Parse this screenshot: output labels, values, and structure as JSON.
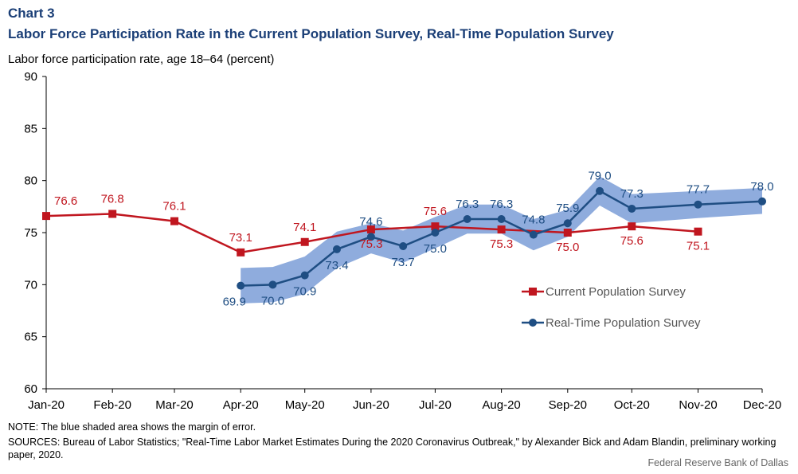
{
  "header": {
    "label": "Chart 3",
    "title": "Labor Force Participation Rate in the Current Population Survey, Real-Time Population Survey"
  },
  "notes": {
    "note": "NOTE: The blue shaded area shows the margin of error.",
    "sources": "SOURCES: Bureau of Labor Statistics; \"Real-Time Labor Market Estimates During the 2020 Coronavirus Outbreak,\" by Alexander Bick and Adam Blandin, preliminary working paper, 2020.",
    "credit": "Federal Reserve Bank of Dallas"
  },
  "chart_data": {
    "type": "line",
    "ylabel": "Labor force participation rate, age 18–64 (percent)",
    "ylim": [
      60,
      90
    ],
    "yticks": [
      60,
      65,
      70,
      75,
      80,
      85,
      90
    ],
    "xlim": [
      "2020-01-01",
      "2020-12-01"
    ],
    "xtick_dates": [
      "2020-01-01",
      "2020-02-01",
      "2020-03-01",
      "2020-04-01",
      "2020-05-01",
      "2020-06-01",
      "2020-07-01",
      "2020-08-01",
      "2020-09-01",
      "2020-10-01",
      "2020-11-01",
      "2020-12-01"
    ],
    "xtick_labels": [
      "Jan-20",
      "Feb-20",
      "Mar-20",
      "Apr-20",
      "May-20",
      "Jun-20",
      "Jul-20",
      "Aug-20",
      "Sep-20",
      "Oct-20",
      "Nov-20",
      "Dec-20"
    ],
    "grid": false,
    "legend": "right",
    "series": [
      {
        "name": "Current Population Survey",
        "color": "#c0161f",
        "marker": "square",
        "x": [
          "2020-01-01",
          "2020-02-01",
          "2020-03-01",
          "2020-04-01",
          "2020-05-01",
          "2020-06-01",
          "2020-07-01",
          "2020-08-01",
          "2020-09-01",
          "2020-10-01",
          "2020-11-01"
        ],
        "values": [
          76.6,
          76.8,
          76.1,
          73.1,
          74.1,
          75.3,
          75.6,
          75.3,
          75.0,
          75.6,
          75.1
        ],
        "labels": [
          "76.6",
          "76.8",
          "76.1",
          "73.1",
          "74.1",
          "75.3",
          "75.6",
          "75.3",
          "75.0",
          "75.6",
          "75.1"
        ]
      },
      {
        "name": "Real-Time Population Survey",
        "color": "#1f4e83",
        "marker": "circle",
        "band_color": "#8facdd",
        "x": [
          "2020-04-01",
          "2020-04-16",
          "2020-05-01",
          "2020-05-16",
          "2020-06-01",
          "2020-06-16",
          "2020-07-01",
          "2020-07-16",
          "2020-08-01",
          "2020-08-16",
          "2020-09-01",
          "2020-09-16",
          "2020-10-01",
          "2020-11-01",
          "2020-12-01"
        ],
        "values": [
          69.9,
          70.0,
          70.9,
          73.4,
          74.6,
          73.7,
          75.0,
          76.3,
          76.3,
          74.8,
          75.9,
          79.0,
          77.3,
          77.7,
          78.0
        ],
        "labels": [
          "69.9",
          "70.0",
          "70.9",
          "73.4",
          "74.6",
          "73.7",
          "75.0",
          "76.3",
          "76.3",
          "74.8",
          "75.9",
          "79.0",
          "77.3",
          "77.7",
          "78.0"
        ],
        "band_low": [
          68.2,
          68.3,
          69.1,
          71.6,
          73.0,
          72.1,
          73.5,
          74.9,
          74.9,
          73.3,
          74.6,
          77.6,
          75.9,
          76.4,
          76.8
        ],
        "band_high": [
          71.6,
          71.7,
          72.7,
          75.1,
          75.9,
          75.2,
          76.5,
          77.7,
          77.7,
          76.3,
          77.2,
          80.4,
          78.7,
          79.0,
          79.3
        ]
      }
    ]
  }
}
